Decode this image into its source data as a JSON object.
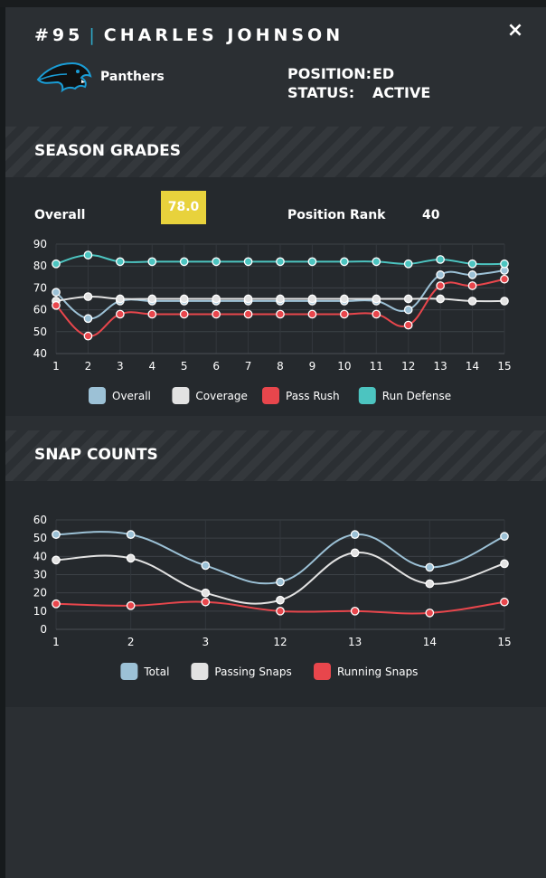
{
  "player": {
    "number": "#95",
    "name": "CHARLES JOHNSON",
    "team": "Panthers",
    "position_label": "POSITION:",
    "position": "ED",
    "status_label": "STATUS:",
    "status": "ACTIVE"
  },
  "close_icon": "×",
  "season_grades": {
    "title": "SEASON GRADES",
    "overall_label": "Overall",
    "overall_value": "78.0",
    "overall_badge_color": "#e8d23c",
    "rank_label": "Position Rank",
    "rank_value": "40"
  },
  "snap_counts": {
    "title": "SNAP COUNTS"
  },
  "chart_data": [
    {
      "type": "line",
      "categories": [
        "1",
        "2",
        "3",
        "4",
        "5",
        "6",
        "7",
        "8",
        "9",
        "10",
        "11",
        "12",
        "13",
        "14",
        "15"
      ],
      "ylim": [
        40,
        90
      ],
      "yticks": [
        40,
        50,
        60,
        70,
        80,
        90
      ],
      "grid": true,
      "legend_position": "bottom",
      "series": [
        {
          "name": "Overall",
          "color": "#9cc1d6",
          "values": [
            68,
            56,
            64,
            64,
            64,
            64,
            64,
            64,
            64,
            64,
            64,
            60,
            76,
            76,
            78
          ]
        },
        {
          "name": "Coverage",
          "color": "#e2e2e2",
          "values": [
            64,
            66,
            65,
            65,
            65,
            65,
            65,
            65,
            65,
            65,
            65,
            65,
            65,
            64,
            64
          ]
        },
        {
          "name": "Pass Rush",
          "color": "#e8464c",
          "values": [
            62,
            48,
            58,
            58,
            58,
            58,
            58,
            58,
            58,
            58,
            58,
            53,
            71,
            71,
            74
          ]
        },
        {
          "name": "Run Defense",
          "color": "#4cc4c0",
          "values": [
            81,
            85,
            82,
            82,
            82,
            82,
            82,
            82,
            82,
            82,
            82,
            81,
            83,
            81,
            81
          ]
        }
      ]
    },
    {
      "type": "line",
      "categories": [
        "1",
        "2",
        "3",
        "12",
        "13",
        "14",
        "15"
      ],
      "ylim": [
        0,
        60
      ],
      "yticks": [
        0,
        10,
        20,
        30,
        40,
        50,
        60
      ],
      "grid": true,
      "legend_position": "bottom",
      "series": [
        {
          "name": "Total",
          "color": "#9cc1d6",
          "values": [
            52,
            52,
            35,
            26,
            52,
            34,
            51
          ]
        },
        {
          "name": "Passing Snaps",
          "color": "#e2e2e2",
          "values": [
            38,
            39,
            20,
            16,
            42,
            25,
            36
          ]
        },
        {
          "name": "Running Snaps",
          "color": "#e8464c",
          "values": [
            14,
            13,
            15,
            10,
            10,
            9,
            15
          ]
        }
      ]
    }
  ]
}
